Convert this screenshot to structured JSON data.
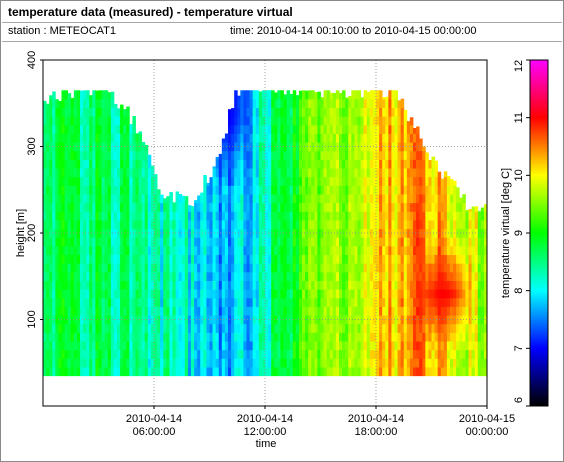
{
  "header": {
    "title": "temperature data (measured) - temperature virtual",
    "station": "station : METEOCAT1",
    "timerange": "time: 2010-04-14 00:10:00 to 2010-04-15 00:00:00"
  },
  "chart_data": {
    "type": "heatmap",
    "title": "temperature data (measured) - temperature virtual",
    "xlabel": "time",
    "ylabel": "height [m]",
    "colorbar_label": "temperature virtual [deg C]",
    "x_ticks": [
      {
        "hours": 6,
        "line1": "2010-04-14",
        "line2": "06:00:00"
      },
      {
        "hours": 12,
        "line1": "2010-04-14",
        "line2": "12:00:00"
      },
      {
        "hours": 18,
        "line1": "2010-04-14",
        "line2": "18:00:00"
      },
      {
        "hours": 24,
        "line1": "2010-04-15",
        "line2": "00:00:00"
      }
    ],
    "xlim_hours": [
      0,
      24
    ],
    "y_ticks": [
      100,
      200,
      300,
      400
    ],
    "ylim": [
      0,
      400
    ],
    "colorbar_ticks": [
      6,
      7,
      8,
      9,
      10,
      11,
      12
    ],
    "colorbar_range": [
      6,
      12
    ],
    "colorbar_colors": [
      "#000000",
      "#0000ff",
      "#00ffff",
      "#00ff00",
      "#ffff00",
      "#ff0000",
      "#ff00ff"
    ],
    "grid": true,
    "data_height_range": [
      35,
      365
    ],
    "time_step_minutes": 10,
    "profile_top_by_hour": [
      [
        0.2,
        350
      ],
      [
        1,
        360
      ],
      [
        2.5,
        365
      ],
      [
        3.5,
        365
      ],
      [
        5,
        330
      ],
      [
        6.5,
        250
      ],
      [
        8,
        235
      ],
      [
        9.5,
        280
      ],
      [
        10.5,
        365
      ],
      [
        12,
        365
      ],
      [
        14,
        365
      ],
      [
        16,
        365
      ],
      [
        17.5,
        365
      ],
      [
        19,
        365
      ],
      [
        20,
        330
      ],
      [
        21,
        285
      ],
      [
        22,
        260
      ],
      [
        23,
        235
      ],
      [
        24,
        225
      ]
    ],
    "temperature_by_hour": [
      [
        0,
        8.7
      ],
      [
        2,
        8.6
      ],
      [
        4,
        8.5
      ],
      [
        6,
        8.3
      ],
      [
        8,
        8.1
      ],
      [
        9.5,
        7.8
      ],
      [
        11,
        7.8
      ],
      [
        12.5,
        8.5
      ],
      [
        14,
        9.1
      ],
      [
        16,
        9.5
      ],
      [
        18,
        10.0
      ],
      [
        20,
        10.5
      ],
      [
        22,
        10.2
      ],
      [
        24,
        9.6
      ]
    ],
    "blue_core": {
      "hours": [
        8.5,
        11.5
      ],
      "min_temp": 7.0,
      "height_range": [
        250,
        365
      ]
    },
    "warm_core": {
      "hours": [
        20,
        23.5
      ],
      "max_temp": 11.0,
      "height_range": [
        60,
        200
      ]
    }
  }
}
